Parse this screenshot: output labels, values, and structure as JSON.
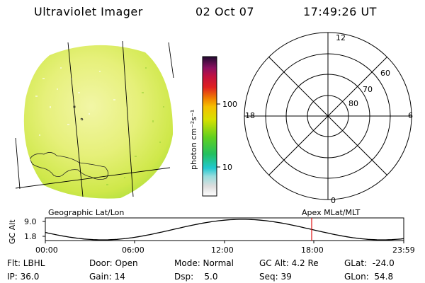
{
  "header": {
    "instrument": "Ultraviolet Imager",
    "date": "02 Oct 07",
    "time": "17:49:26 UT"
  },
  "colorbar": {
    "unit_label": "photon cm⁻²s⁻¹",
    "tick_100": "100",
    "tick_10": "10",
    "scale": "log"
  },
  "polar": {
    "mlt_top": "12",
    "mlt_bottom": "0",
    "mlt_left": "18",
    "mlt_right": "6",
    "lat_60": "60",
    "lat_70": "70",
    "lat_80": "80"
  },
  "panel_labels": {
    "left": "Geographic Lat/Lon",
    "right": "Apex MLat/MLT"
  },
  "altitude_plot": {
    "ylabel": "GC Alt",
    "y_hi": "9.0",
    "y_lo": "1.8",
    "x_ticks": [
      "00:00",
      "06:00",
      "12:00",
      "18:00",
      "23:59"
    ],
    "current_time_marker_hours": 17.82
  },
  "status": {
    "flt": "Flt: LBHL",
    "ip": "IP: 36.0",
    "door": "Door: Open",
    "gain": "Gain: 14",
    "mode": "Mode: Normal",
    "dsp": "Dsp:    5.0",
    "gc_alt": "GC Alt: 4.2 Re",
    "seq": "Seq: 39",
    "glat": "GLat:  -24.0",
    "glon": "GLon:  54.8"
  },
  "colors": {
    "marker_red": "#e01010",
    "earth_green": "#c8e840"
  }
}
